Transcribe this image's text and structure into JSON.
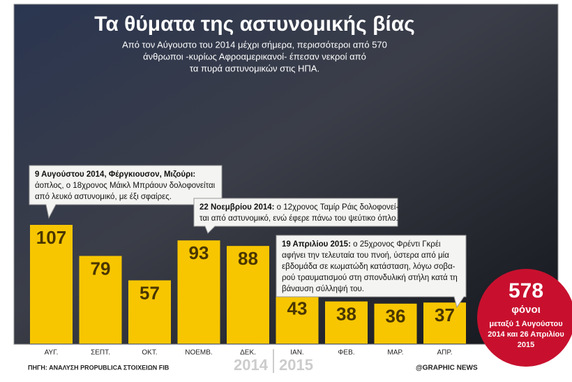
{
  "chart_data": {
    "type": "bar",
    "title": "Τα θύματα της αστυνομικής βίας",
    "subtitle": [
      "Από τον Αύγουστο του 2014 μέχρι σήμερα, περισσότεροι από 570",
      "άνθρωποι -κυρίως Αφροαμερικανοί- έπεσαν νεκροί από",
      "τα πυρά αστυνομικών στις ΗΠΑ."
    ],
    "categories": [
      "ΑΥΓ.",
      "ΣΕΠΤ.",
      "ΟΚΤ.",
      "ΝΟΕΜΒ.",
      "ΔΕΚ.",
      "ΙΑΝ.",
      "ΦΕΒ.",
      "ΜΑΡ.",
      "ΑΠΡ."
    ],
    "values": [
      107,
      79,
      57,
      93,
      88,
      43,
      38,
      36,
      37
    ],
    "color": "#f7c600",
    "years": [
      "2014",
      "2015"
    ],
    "annotations": [
      {
        "date": "9 Αυγούστου 2014, Φέργκιουσον, Μιζούρι:",
        "lines": [
          "άοπλος, ο 18χρονος Μάικλ Μπράουν δολοφονείται",
          "από λευκό αστυνομικό, με έξι σφαίρες."
        ]
      },
      {
        "date": "22 Νοεμβρίου 2014:",
        "lines": [
          " ο 12χρονος Ταμίρ Ράις δολοφονεί-",
          "ται από αστυνομικό, ενώ έφερε πάνω του ψεύτικο όπλο."
        ]
      },
      {
        "date": "19 Απριλίου 2015:",
        "lines": [
          " ο 25χρονος Φρέντι Γκρέι",
          "αφήνει την τελευταία του πνοή, ύστερα από μία",
          "εβδομάδα σε κωματώδη κατάσταση, λόγω σοβα-",
          "ρού τραυματισμού στη σπονδυλική στήλη κατά τη",
          "βάναυση σύλληψή του."
        ]
      }
    ],
    "total": {
      "value": 578,
      "label": "φόνοι",
      "lines": [
        "μεταξύ 1 Αυγούστου",
        "2014 και 26 Απριλίου",
        "2015"
      ]
    },
    "source": "ΠΗΓΗ: ΑΝΑΛΥΣΗ PROPUBLICA ΣΤΟΙΧΕΙΩΝ FIB",
    "credit": "@GRAPHIC NEWS"
  }
}
